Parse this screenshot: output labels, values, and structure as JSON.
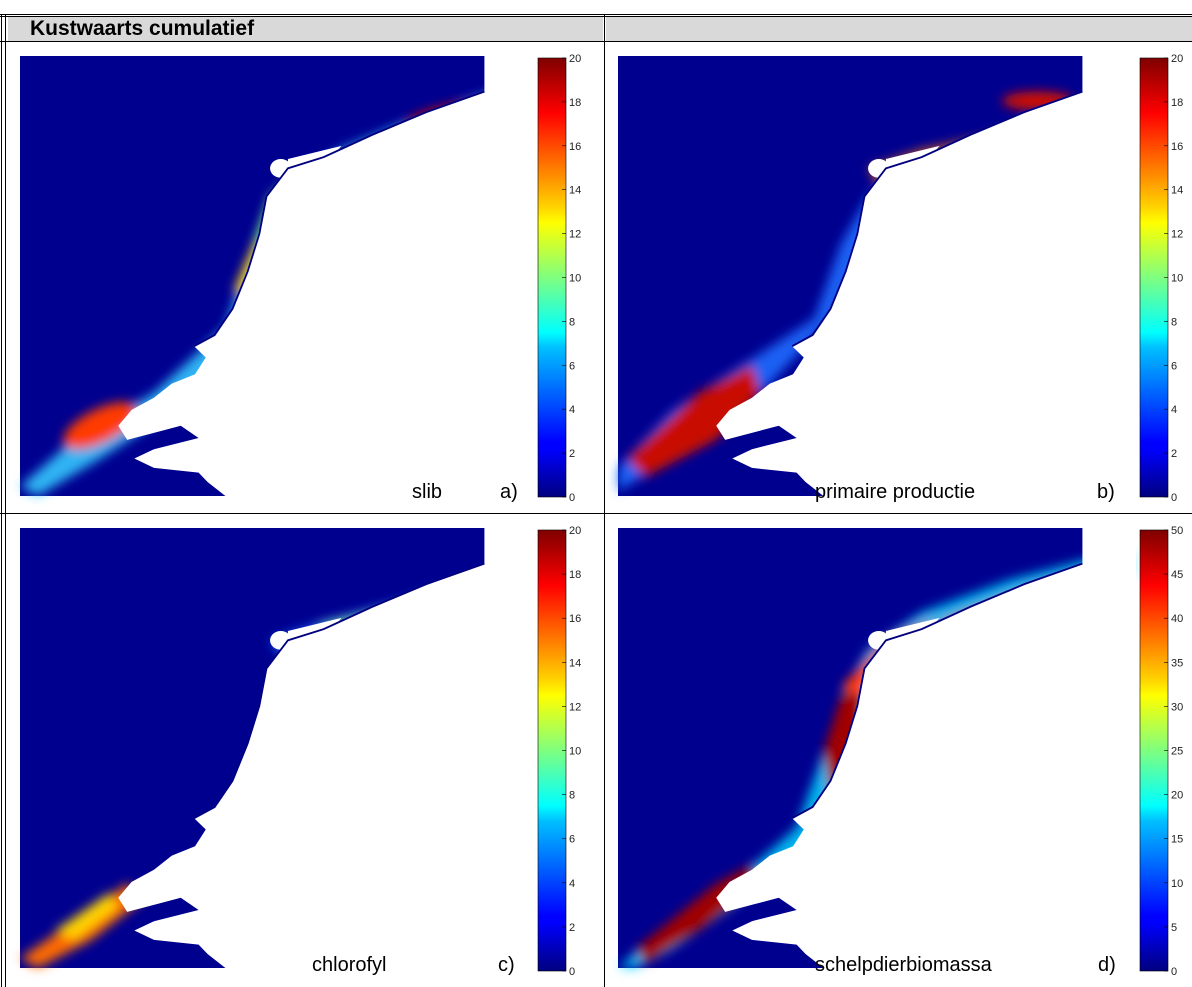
{
  "table": {
    "header_left": "Kustwaarts cumulatief",
    "header_right": ""
  },
  "panels": [
    {
      "id": "a",
      "name": "slib",
      "letter": "a)",
      "cbar_max": 20,
      "ticks": [
        "20",
        "18",
        "16",
        "14",
        "12",
        "10",
        "8",
        "6",
        "4",
        "2",
        "0"
      ]
    },
    {
      "id": "b",
      "name": "primaire productie",
      "letter": "b)",
      "cbar_max": 20,
      "ticks": [
        "20",
        "18",
        "16",
        "14",
        "12",
        "10",
        "8",
        "6",
        "4",
        "2",
        "0"
      ]
    },
    {
      "id": "c",
      "name": "chlorofyl",
      "letter": "c)",
      "cbar_max": 20,
      "ticks": [
        "20",
        "18",
        "16",
        "14",
        "12",
        "10",
        "8",
        "6",
        "4",
        "2",
        "0"
      ]
    },
    {
      "id": "d",
      "name": "schelpdierbiomassa",
      "letter": "d)",
      "cbar_max": 50,
      "ticks": [
        "50",
        "45",
        "40",
        "35",
        "30",
        "25",
        "20",
        "15",
        "10",
        "5",
        "0"
      ]
    }
  ],
  "colors": {
    "background_sea": "#00008f",
    "header_fill": "#d9d9d9",
    "colormap": "jet"
  }
}
